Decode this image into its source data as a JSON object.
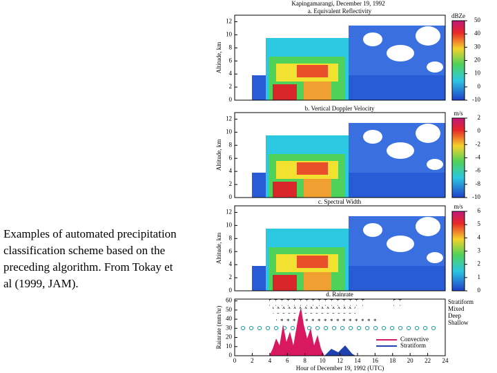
{
  "caption": [
    "Examples of automated precipitation",
    "classification scheme based on the",
    "preceding algorithm.  From Tokay et",
    "al (1999, JAM)."
  ],
  "figure": {
    "title": "Kapingamarangi, December 19, 1992",
    "panels": [
      {
        "title": "a. Equivalent Reflectivity",
        "ylabel": "Altitude, km",
        "yticks": [
          0,
          2,
          4,
          6,
          8,
          10,
          12
        ],
        "colorbar_label": "dBZe",
        "colorbar_ticks": [
          50,
          40,
          30,
          20,
          10,
          0,
          -10
        ]
      },
      {
        "title": "b. Vertical Doppler Velocity",
        "ylabel": "Altitude, km",
        "yticks": [
          0,
          2,
          4,
          6,
          8,
          10,
          12
        ],
        "colorbar_label": "m/s",
        "colorbar_ticks": [
          2,
          0,
          -2,
          -4,
          -6,
          -8,
          -10
        ]
      },
      {
        "title": "c. Spectral Width",
        "ylabel": "Altitude, km",
        "yticks": [
          0,
          2,
          4,
          6,
          8,
          10,
          12
        ],
        "colorbar_label": "m/s",
        "colorbar_ticks": [
          6,
          5,
          4,
          3,
          2,
          1,
          0
        ]
      }
    ],
    "rain": {
      "title": "d. Rainrate",
      "ylabel": "Rainrate (mm/hr)",
      "yticks": [
        0,
        10,
        20,
        30,
        40,
        50,
        60
      ],
      "xticks": [
        0,
        2,
        4,
        6,
        8,
        10,
        12,
        14,
        16,
        18,
        20,
        22,
        24
      ],
      "xlabel": "Hour of December 19, 1992 (UTC)",
      "classes": [
        "Stratiform",
        "Mixed",
        "Deep",
        "Shallow"
      ],
      "legend": [
        "Convective",
        "Stratiform"
      ]
    }
  }
}
